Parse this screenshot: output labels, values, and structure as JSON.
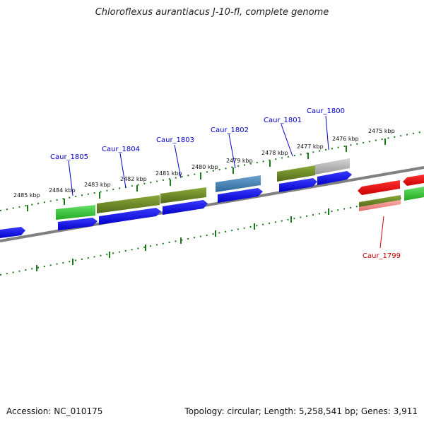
{
  "header": {
    "title": "Chloroflexus aurantiacus J-10-fl, complete genome"
  },
  "footer": {
    "accession": "Accession: NC_010175",
    "summary": "Topology: circular; Length: 5,258,541 bp; Genes: 3,911"
  },
  "colors": {
    "forward_gene": "#0000ee",
    "reverse_gene": "#ee0000",
    "green_feature": "#33cc33",
    "olive_feature": "#6b8e23",
    "steelblue_feature": "#4682b4",
    "gray_feature": "#aaaaaa",
    "pink_feature": "#ee8888",
    "backbone": "#777777",
    "tick": "#1a7a1a"
  },
  "ticks": {
    "labels": [
      "2475 kbp",
      "2476 kbp",
      "2477 kbp",
      "2478 kbp",
      "2479 kbp",
      "2480 kbp",
      "2481 kbp",
      "2482 kbp",
      "2483 kbp",
      "2484 kbp",
      "2485 kbp"
    ]
  },
  "genes": [
    {
      "label": "Caur_1800",
      "strand": "forward"
    },
    {
      "label": "Caur_1801",
      "strand": "forward"
    },
    {
      "label": "Caur_1802",
      "strand": "forward"
    },
    {
      "label": "Caur_1803",
      "strand": "forward"
    },
    {
      "label": "Caur_1804",
      "strand": "forward"
    },
    {
      "label": "Caur_1805",
      "strand": "forward"
    },
    {
      "label": "Caur_1799",
      "strand": "reverse"
    }
  ]
}
